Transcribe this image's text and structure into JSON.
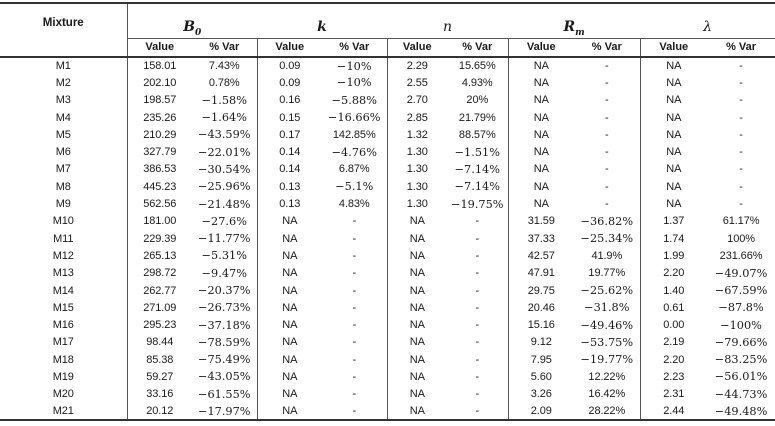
{
  "table": {
    "mixture_header": "Mixture",
    "groups": [
      {
        "name": "B0",
        "main": "B",
        "sub": "0",
        "bold": true
      },
      {
        "name": "k",
        "main": "k",
        "sub": "",
        "bold": true
      },
      {
        "name": "n",
        "main": "n",
        "sub": "",
        "bold": false
      },
      {
        "name": "Rm",
        "main": "R",
        "sub": "m",
        "bold": true
      },
      {
        "name": "lambda",
        "main": "λ",
        "sub": "",
        "bold": false
      }
    ],
    "subheaders": {
      "value_label": "Value",
      "var_label": "% Var"
    },
    "rows": [
      {
        "mixture": "M1",
        "cells": [
          "158.01",
          "7.43%",
          "0.09",
          "−10%",
          "2.29",
          "15.65%",
          "NA",
          "-",
          "NA",
          "-"
        ]
      },
      {
        "mixture": "M2",
        "cells": [
          "202.10",
          "0.78%",
          "0.09",
          "−10%",
          "2.55",
          "4.93%",
          "NA",
          "-",
          "NA",
          "-"
        ]
      },
      {
        "mixture": "M3",
        "cells": [
          "198.57",
          "−1.58%",
          "0.16",
          "−5.88%",
          "2.70",
          "20%",
          "NA",
          "-",
          "NA",
          "-"
        ]
      },
      {
        "mixture": "M4",
        "cells": [
          "235.26",
          "−1.64%",
          "0.15",
          "−16.66%",
          "2.85",
          "21.79%",
          "NA",
          "-",
          "NA",
          "-"
        ]
      },
      {
        "mixture": "M5",
        "cells": [
          "210.29",
          "−43.59%",
          "0.17",
          "142.85%",
          "1.32",
          "88.57%",
          "NA",
          "-",
          "NA",
          "-"
        ]
      },
      {
        "mixture": "M6",
        "cells": [
          "327.79",
          "−22.01%",
          "0.14",
          "−4.76%",
          "1.30",
          "−1.51%",
          "NA",
          "-",
          "NA",
          "-"
        ]
      },
      {
        "mixture": "M7",
        "cells": [
          "386.53",
          "−30.54%",
          "0.14",
          "6.87%",
          "1.30",
          "−7.14%",
          "NA",
          "-",
          "NA",
          "-"
        ]
      },
      {
        "mixture": "M8",
        "cells": [
          "445.23",
          "−25.96%",
          "0.13",
          "−5.1%",
          "1.30",
          "−7.14%",
          "NA",
          "-",
          "NA",
          "-"
        ]
      },
      {
        "mixture": "M9",
        "cells": [
          "562.56",
          "−21.48%",
          "0.13",
          "4.83%",
          "1.30",
          "−19.75%",
          "NA",
          "-",
          "NA",
          "-"
        ]
      },
      {
        "mixture": "M10",
        "cells": [
          "181.00",
          "−27.6%",
          "NA",
          "-",
          "NA",
          "-",
          "31.59",
          "−36.82%",
          "1.37",
          "61.17%"
        ]
      },
      {
        "mixture": "M11",
        "cells": [
          "229.39",
          "−11.77%",
          "NA",
          "-",
          "NA",
          "-",
          "37.33",
          "−25.34%",
          "1.74",
          "100%"
        ]
      },
      {
        "mixture": "M12",
        "cells": [
          "265.13",
          "−5.31%",
          "NA",
          "-",
          "NA",
          "-",
          "42.57",
          "41.9%",
          "1.99",
          "231.66%"
        ]
      },
      {
        "mixture": "M13",
        "cells": [
          "298.72",
          "−9.47%",
          "NA",
          "-",
          "NA",
          "-",
          "47.91",
          "19.77%",
          "2.20",
          "−49.07%"
        ]
      },
      {
        "mixture": "M14",
        "cells": [
          "262.77",
          "−20.37%",
          "NA",
          "-",
          "NA",
          "-",
          "29.75",
          "−25.62%",
          "1.40",
          "−67.59%"
        ]
      },
      {
        "mixture": "M15",
        "cells": [
          "271.09",
          "−26.73%",
          "NA",
          "-",
          "NA",
          "-",
          "20.46",
          "−31.8%",
          "0.61",
          "−87.8%"
        ]
      },
      {
        "mixture": "M16",
        "cells": [
          "295.23",
          "−37.18%",
          "NA",
          "-",
          "NA",
          "-",
          "15.16",
          "−49.46%",
          "0.00",
          "−100%"
        ]
      },
      {
        "mixture": "M17",
        "cells": [
          "98.44",
          "−78.59%",
          "NA",
          "-",
          "NA",
          "-",
          "9.12",
          "−53.75%",
          "2.19",
          "−79.66%"
        ]
      },
      {
        "mixture": "M18",
        "cells": [
          "85.38",
          "−75.49%",
          "NA",
          "-",
          "NA",
          "-",
          "7.95",
          "−19.77%",
          "2.20",
          "−83.25%"
        ]
      },
      {
        "mixture": "M19",
        "cells": [
          "59.27",
          "−43.05%",
          "NA",
          "-",
          "NA",
          "-",
          "5.60",
          "12.22%",
          "2.23",
          "−56.01%"
        ]
      },
      {
        "mixture": "M20",
        "cells": [
          "33.16",
          "−61.55%",
          "NA",
          "-",
          "NA",
          "-",
          "3.26",
          "16.42%",
          "2.31",
          "−44.73%"
        ]
      },
      {
        "mixture": "M21",
        "cells": [
          "20.12",
          "−17.97%",
          "NA",
          "-",
          "NA",
          "-",
          "2.09",
          "28.22%",
          "2.44",
          "−49.48%"
        ]
      }
    ]
  }
}
